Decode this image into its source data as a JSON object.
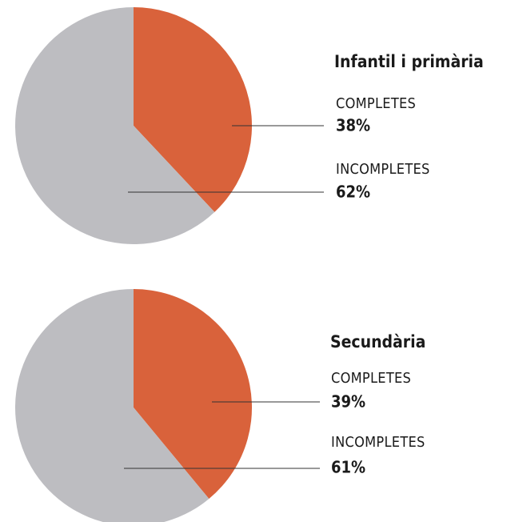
{
  "chart_data": [
    {
      "type": "pie",
      "title": "Infantil i primària",
      "categories": [
        "COMPLETES",
        "INCOMPLETES"
      ],
      "values": [
        38,
        62
      ],
      "value_labels": [
        "38%",
        "62%"
      ],
      "colors": [
        "#d9623b",
        "#bdbdc1"
      ]
    },
    {
      "type": "pie",
      "title": "Secundària",
      "categories": [
        "COMPLETES",
        "INCOMPLETES"
      ],
      "values": [
        39,
        61
      ],
      "value_labels": [
        "39%",
        "61%"
      ],
      "colors": [
        "#d9623b",
        "#bdbdc1"
      ]
    }
  ]
}
